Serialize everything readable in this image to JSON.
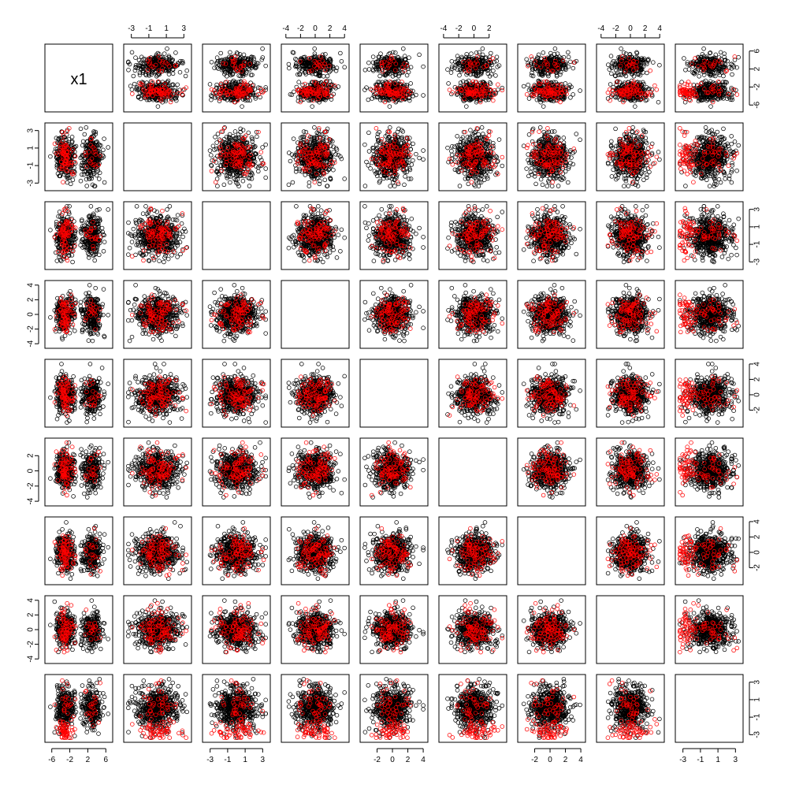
{
  "chart_data": {
    "type": "scatter",
    "layout": "scatterplot-matrix",
    "n_variables": 9,
    "diagonal_labels": [
      "x1",
      "",
      "",
      "",
      "",
      "",
      "",
      "",
      ""
    ],
    "marker": "open-circle",
    "colors": {
      "class_a": "#000000",
      "class_b": "#ff0000",
      "background": "#ffffff"
    },
    "variables": [
      {
        "range": [
          -7,
          7
        ],
        "tick_values": [
          -6,
          -2,
          2,
          6
        ],
        "tick_labels": [
          "-6",
          "-2",
          "2",
          "6"
        ],
        "bimodal": true
      },
      {
        "range": [
          -3.6,
          3.6
        ],
        "tick_values": [
          -3,
          -1,
          1,
          3
        ],
        "tick_labels": [
          "-3",
          "-1",
          "1",
          "3"
        ]
      },
      {
        "range": [
          -3.6,
          3.6
        ],
        "tick_values": [
          -3,
          -1,
          1,
          3
        ],
        "tick_labels": [
          "-3",
          "-1",
          "1",
          "3"
        ]
      },
      {
        "range": [
          -4.3,
          4.3
        ],
        "tick_values": [
          -4,
          -2,
          0,
          2,
          4
        ],
        "tick_labels": [
          "-4",
          "-2",
          "0",
          "2",
          "4"
        ]
      },
      {
        "range": [
          -3.9,
          4.3
        ],
        "tick_values": [
          -2,
          0,
          2,
          4
        ],
        "tick_labels": [
          "-2",
          "0",
          "2",
          "4"
        ]
      },
      {
        "range": [
          -4.3,
          4.0
        ],
        "tick_values": [
          -4,
          -2,
          0,
          2
        ],
        "tick_labels": [
          "-4",
          "-2",
          "0",
          "2"
        ]
      },
      {
        "range": [
          -3.9,
          4.3
        ],
        "tick_values": [
          -2,
          0,
          2,
          4
        ],
        "tick_labels": [
          "-2",
          "0",
          "2",
          "4"
        ]
      },
      {
        "range": [
          -4.3,
          4.3
        ],
        "tick_values": [
          -4,
          -2,
          0,
          2,
          4
        ],
        "tick_labels": [
          "-4",
          "-2",
          "0",
          "2",
          "4"
        ]
      },
      {
        "range": [
          -3.6,
          3.6
        ],
        "tick_values": [
          -3,
          -1,
          1,
          3
        ],
        "tick_labels": [
          "-3",
          "-1",
          "1",
          "3"
        ]
      }
    ],
    "axes": {
      "top": {
        "variables": [
          2,
          4,
          6,
          8
        ]
      },
      "bottom": {
        "variables": [
          1,
          3,
          5,
          7,
          9
        ]
      },
      "left": {
        "variables": [
          2,
          4,
          6,
          8
        ]
      },
      "right": {
        "variables": [
          1,
          3,
          5,
          7,
          9
        ]
      }
    },
    "series": [
      {
        "class": "class_a",
        "points_per_panel": 520,
        "note_values": "x1 cluster centres approx. -3 and 3; other variables centred at 0"
      },
      {
        "class": "class_b",
        "points_per_panel": 95,
        "note_values": "concentrated at negative x1 and negative x9 extremes"
      }
    ],
    "grid": false,
    "legend": "none"
  }
}
